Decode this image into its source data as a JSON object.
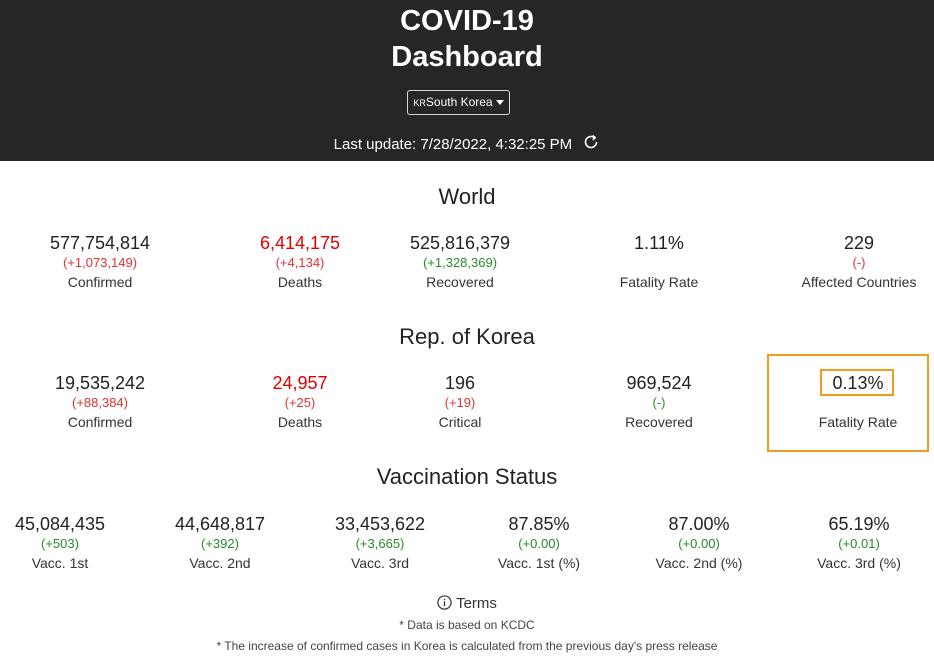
{
  "header": {
    "title_line1": "COVID-19",
    "title_line2": "Dashboard",
    "country_flag_text": "KR",
    "country_name": "South Korea",
    "last_update_label": "Last update: 7/28/2022, 4:32:25 PM"
  },
  "world": {
    "title": "World",
    "stats": [
      {
        "value": "577,754,814",
        "delta": "(+1,073,149)",
        "label": "Confirmed"
      },
      {
        "value": "6,414,175",
        "delta": "(+4,134)",
        "label": "Deaths"
      },
      {
        "value": "525,816,379",
        "delta": "(+1,328,369)",
        "label": "Recovered"
      },
      {
        "value": "1.11%",
        "delta": "",
        "label": "Fatality Rate"
      },
      {
        "value": "229",
        "delta": "(-)",
        "label": "Affected Countries"
      }
    ]
  },
  "korea": {
    "title": "Rep. of Korea",
    "stats": [
      {
        "value": "19,535,242",
        "delta": "(+88,384)",
        "label": "Confirmed"
      },
      {
        "value": "24,957",
        "delta": "(+25)",
        "label": "Deaths"
      },
      {
        "value": "196",
        "delta": "(+19)",
        "label": "Critical"
      },
      {
        "value": "969,524",
        "delta": "(-)",
        "label": "Recovered"
      },
      {
        "value": "0.13%",
        "delta": "",
        "label": "Fatality Rate"
      }
    ]
  },
  "vaccination": {
    "title": "Vaccination Status",
    "stats": [
      {
        "value": "45,084,435",
        "delta": "(+503)",
        "label": "Vacc. 1st"
      },
      {
        "value": "44,648,817",
        "delta": "(+392)",
        "label": "Vacc. 2nd"
      },
      {
        "value": "33,453,622",
        "delta": "(+3,665)",
        "label": "Vacc. 3rd"
      },
      {
        "value": "87.85%",
        "delta": "(+0.00)",
        "label": "Vacc. 1st (%)"
      },
      {
        "value": "87.00%",
        "delta": "(+0.00)",
        "label": "Vacc. 2nd (%)"
      },
      {
        "value": "65.19%",
        "delta": "(+0.01)",
        "label": "Vacc. 3rd (%)"
      }
    ]
  },
  "footer": {
    "terms_label": "Terms",
    "note1": "* Data is based on KCDC",
    "note2": "* The increase of confirmed cases in Korea is calculated from the previous day's press release"
  },
  "colors": {
    "header_bg": "#262626",
    "death_red": "#e00000",
    "delta_red": "#d33333",
    "delta_green": "#2a8a2a",
    "highlight_orange": "#f59a1b"
  },
  "icons": [
    "refresh-icon",
    "info-icon",
    "caret-down-icon"
  ]
}
